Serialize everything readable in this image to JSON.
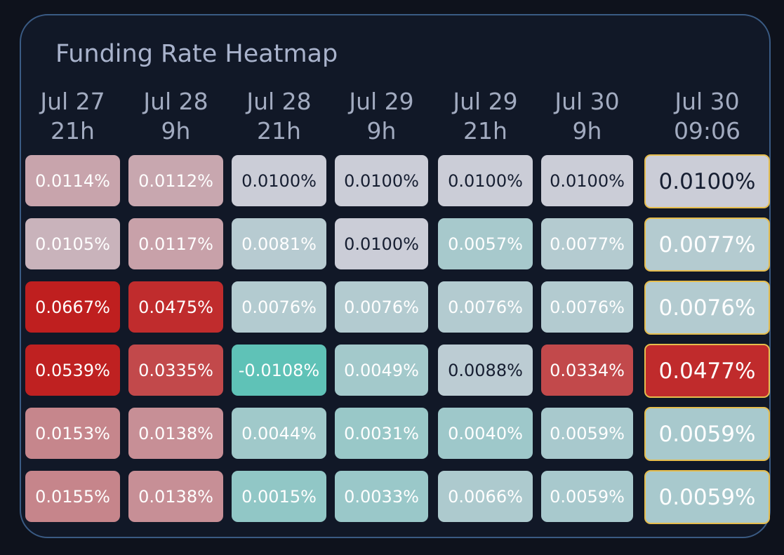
{
  "header": {
    "title": "Funding Rate Heatmap"
  },
  "chart_data": {
    "type": "heatmap",
    "title": "Funding Rate Heatmap",
    "columns": [
      {
        "line1": "Jul 27",
        "line2": "21h"
      },
      {
        "line1": "Jul 28",
        "line2": "9h"
      },
      {
        "line1": "Jul 28",
        "line2": "21h"
      },
      {
        "line1": "Jul 29",
        "line2": "9h"
      },
      {
        "line1": "Jul 29",
        "line2": "21h"
      },
      {
        "line1": "Jul 30",
        "line2": "9h"
      },
      {
        "line1": "Jul 30",
        "line2": "09:06"
      }
    ],
    "current_column_index": 6,
    "unit": "%",
    "rows": [
      [
        0.0114,
        0.0112,
        0.01,
        0.01,
        0.01,
        0.01,
        0.01
      ],
      [
        0.0105,
        0.0117,
        0.0081,
        0.01,
        0.0057,
        0.0077,
        0.0077
      ],
      [
        0.0667,
        0.0475,
        0.0076,
        0.0076,
        0.0076,
        0.0076,
        0.0076
      ],
      [
        0.0539,
        0.0335,
        -0.0108,
        0.0049,
        0.0088,
        0.0334,
        0.0477
      ],
      [
        0.0153,
        0.0138,
        0.0044,
        0.0031,
        0.004,
        0.0059,
        0.0059
      ],
      [
        0.0155,
        0.0138,
        0.0015,
        0.0033,
        0.0066,
        0.0059,
        0.0059
      ]
    ],
    "labels": [
      [
        "0.0114%",
        "0.0112%",
        "0.0100%",
        "0.0100%",
        "0.0100%",
        "0.0100%",
        "0.0100%"
      ],
      [
        "0.0105%",
        "0.0117%",
        "0.0081%",
        "0.0100%",
        "0.0057%",
        "0.0077%",
        "0.0077%"
      ],
      [
        "0.0667%",
        "0.0475%",
        "0.0076%",
        "0.0076%",
        "0.0076%",
        "0.0076%",
        "0.0076%"
      ],
      [
        "0.0539%",
        "0.0335%",
        "-0.0108%",
        "0.0049%",
        "0.0088%",
        "0.0334%",
        "0.0477%"
      ],
      [
        "0.0153%",
        "0.0138%",
        "0.0044%",
        "0.0031%",
        "0.0040%",
        "0.0059%",
        "0.0059%"
      ],
      [
        "0.0155%",
        "0.0138%",
        "0.0015%",
        "0.0033%",
        "0.0066%",
        "0.0059%",
        "0.0059%"
      ]
    ],
    "colors": {
      "neutral": "#cbcdd7",
      "positive": "#bf1f1f",
      "negative": "#5fc2b7",
      "dark_text": "#161e31",
      "light_text": "#ffffff",
      "current_border": "#e6bd4d"
    }
  }
}
